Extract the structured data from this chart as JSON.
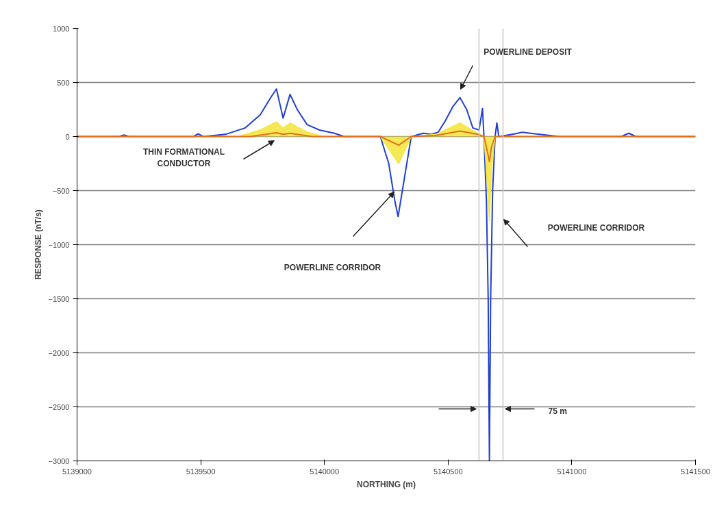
{
  "chart_data": {
    "type": "line",
    "xlabel": "NORTHING (m)",
    "ylabel": "RESPONSE (nT/s)",
    "xlim": [
      5139000,
      5141500
    ],
    "xticks": [
      5139000,
      5139500,
      5140000,
      5140500,
      5141000,
      5141500
    ],
    "ylim": [
      -3000,
      1000
    ],
    "yticks": [
      -3000,
      -2500,
      -2000,
      -1500,
      -1000,
      -500,
      0,
      500,
      1000
    ],
    "grid": "y",
    "marker": "none",
    "line_style": "solid",
    "series": [
      {
        "color": "#1f3fd0",
        "x": [
          5139000,
          5139170,
          5139190,
          5139210,
          5139470,
          5139490,
          5139510,
          5139600,
          5139680,
          5139740,
          5139780,
          5139806,
          5139833,
          5139861,
          5139890,
          5139930,
          5139980,
          5140040,
          5140080,
          5140226,
          5140260,
          5140285,
          5140298,
          5140315,
          5140351,
          5140400,
          5140430,
          5140460,
          5140490,
          5140520,
          5140548,
          5140575,
          5140600,
          5140625,
          5140639,
          5140645,
          5140655,
          5140662,
          5140667,
          5140672,
          5140680,
          5140690,
          5140697,
          5140705,
          5140760,
          5140800,
          5140850,
          5140950,
          5141200,
          5141230,
          5141260,
          5141500
        ],
        "values": [
          0,
          0,
          15,
          0,
          0,
          25,
          0,
          20,
          80,
          200,
          350,
          440,
          170,
          390,
          250,
          110,
          60,
          30,
          0,
          0,
          -250,
          -600,
          -740,
          -500,
          0,
          30,
          20,
          40,
          150,
          280,
          360,
          250,
          80,
          60,
          258,
          0,
          -600,
          -1500,
          -3000,
          -1500,
          -500,
          0,
          126,
          0,
          20,
          40,
          25,
          0,
          0,
          30,
          0,
          0
        ]
      },
      {
        "type": "area",
        "color": "#f5e642",
        "x": [
          5139000,
          5139650,
          5139740,
          5139806,
          5139833,
          5139861,
          5139930,
          5140000,
          5140226,
          5140300,
          5140351,
          5140450,
          5140548,
          5140620,
          5140645,
          5140660,
          5140667,
          5140675,
          5140690,
          5141500
        ],
        "values": [
          0,
          0,
          60,
          135,
          80,
          125,
          40,
          0,
          0,
          -250,
          0,
          20,
          126,
          30,
          0,
          -500,
          -780,
          -300,
          0,
          0
        ]
      },
      {
        "color": "#e07020",
        "x": [
          5139000,
          5139700,
          5139806,
          5139833,
          5139861,
          5139950,
          5140226,
          5140300,
          5140351,
          5140450,
          5140548,
          5140620,
          5140645,
          5140660,
          5140667,
          5140675,
          5140690,
          5141500
        ],
        "values": [
          0,
          0,
          35,
          20,
          30,
          0,
          0,
          -80,
          0,
          10,
          50,
          20,
          0,
          -150,
          -233,
          -100,
          0,
          0
        ]
      }
    ],
    "ref_lines": [
      {
        "axis": "x",
        "value": 5140625,
        "color": "#c8c8c8"
      },
      {
        "axis": "x",
        "value": 5140722,
        "color": "#c8c8c8"
      }
    ],
    "annotations": [
      "POWERLINE DEPOSIT",
      "THIN FORMATIONAL\nCONDUCTOR",
      "POWERLINE CORRIDOR",
      "POWERLINE CORRIDOR",
      "75 m"
    ]
  }
}
